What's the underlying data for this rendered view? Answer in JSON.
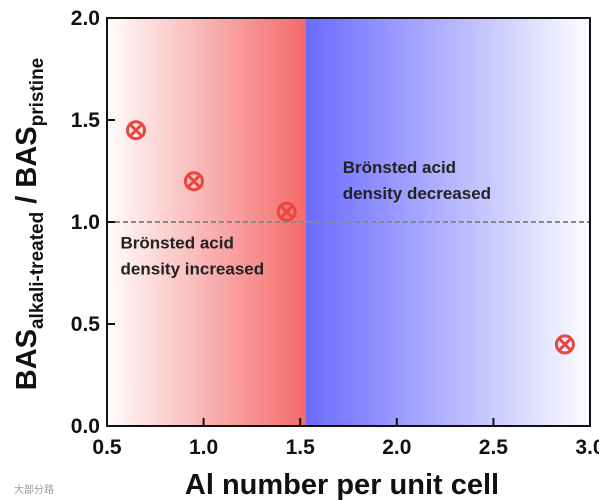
{
  "chart_data": {
    "type": "scatter",
    "xlabel": "Al number per unit cell",
    "ylabel": {
      "main1": "BAS",
      "sub1": "alkali-treated",
      "separator": " / ",
      "main2": "BAS",
      "sub2": "pristine"
    },
    "xlim": [
      0.5,
      3.0
    ],
    "ylim": [
      0.0,
      2.0
    ],
    "xticks": [
      "0.5",
      "1.0",
      "1.5",
      "2.0",
      "2.5",
      "3.0"
    ],
    "yticks": [
      "0.0",
      "0.5",
      "1.0",
      "1.5",
      "2.0"
    ],
    "grid": false,
    "series": [
      {
        "marker": "circled-x",
        "color": "#e8473f",
        "points": [
          {
            "x": 0.65,
            "y": 1.45
          },
          {
            "x": 0.95,
            "y": 1.2
          },
          {
            "x": 1.43,
            "y": 1.05
          },
          {
            "x": 2.87,
            "y": 0.4
          }
        ]
      }
    ],
    "reference_line": {
      "y": 1.0,
      "style": "dashed",
      "color": "#888888"
    },
    "regions": [
      {
        "from": 0.5,
        "to": 1.53,
        "color": "#f46a6a",
        "gradient": "fade-left"
      },
      {
        "from": 1.53,
        "to": 3.0,
        "color": "#6b6bff",
        "gradient": "fade-right"
      }
    ],
    "annotations": {
      "increased": {
        "lines": [
          "Brönsted acid",
          "density increased"
        ],
        "x": 0.57,
        "y": 0.87
      },
      "decreased": {
        "lines": [
          "Brönsted acid",
          "density decreased"
        ],
        "x": 1.72,
        "y": 1.24
      }
    }
  },
  "watermark": "大部分路"
}
